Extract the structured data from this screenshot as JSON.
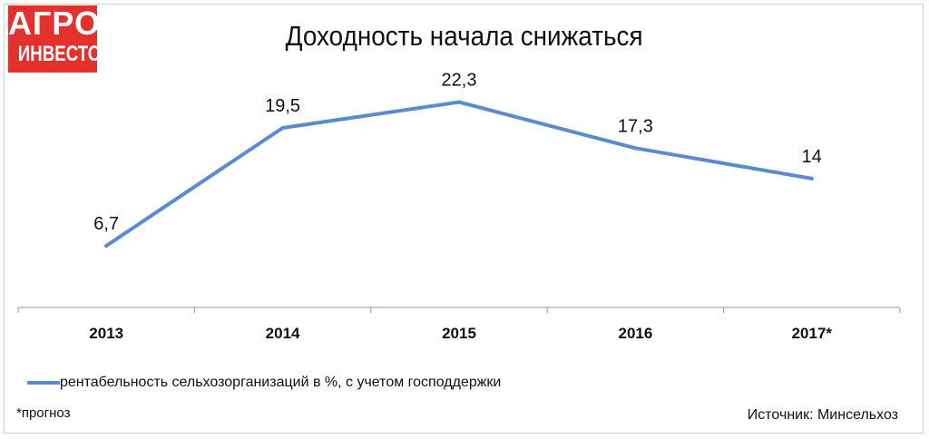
{
  "logo": {
    "line1": "АГРО",
    "line2": "ИНВЕСТОР"
  },
  "footnote": "*прогноз",
  "source": "Источник: Минсельхоз",
  "chart_data": {
    "type": "line",
    "title": "Доходность начала снижаться",
    "categories": [
      "2013",
      "2014",
      "2015",
      "2016",
      "2017*"
    ],
    "series": [
      {
        "name": "рентабельность сельхозорганизаций в %, с учетом господдержки",
        "values": [
          6.7,
          19.5,
          22.3,
          17.3,
          14
        ],
        "labels": [
          "6,7",
          "19,5",
          "22,3",
          "17,3",
          "14"
        ],
        "color": "#5b8ad0"
      }
    ],
    "ylim": [
      0,
      26
    ],
    "grid": false,
    "legend_position": "bottom-left"
  }
}
